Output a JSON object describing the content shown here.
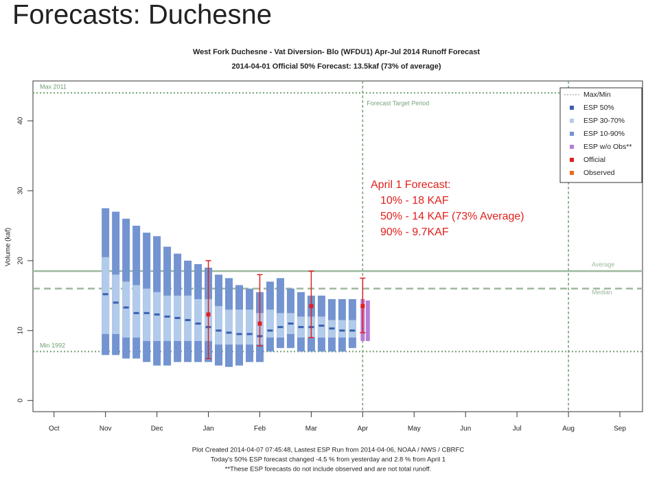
{
  "slide_title": "Forecasts: Duchesne",
  "chart_data": {
    "type": "range",
    "title": "West Fork Duchesne - Vat Diversion- Blo (WFDU1) Apr-Jul 2014 Runoff Forecast",
    "subtitle": "2014-04-01 Official 50% Forecast: 13.5kaf (73% of average)",
    "y_label": "Volume (kaf)",
    "xlim": [
      -0.41,
      11.44
    ],
    "xticks": [
      {
        "value": 0,
        "label": "Oct"
      },
      {
        "value": 1,
        "label": "Nov"
      },
      {
        "value": 2,
        "label": "Dec"
      },
      {
        "value": 3,
        "label": "Jan"
      },
      {
        "value": 4,
        "label": "Feb"
      },
      {
        "value": 5,
        "label": "Mar"
      },
      {
        "value": 6,
        "label": "Apr"
      },
      {
        "value": 7,
        "label": "May"
      },
      {
        "value": 8,
        "label": "Jun"
      },
      {
        "value": 9,
        "label": "Jul"
      },
      {
        "value": 10,
        "label": "Aug"
      },
      {
        "value": 11,
        "label": "Sep"
      }
    ],
    "ylim": [
      -1.6,
      45.7
    ],
    "yticks": [
      0,
      10,
      20,
      30,
      40
    ],
    "series": [
      {
        "name": "Max/Min",
        "color": "#6f9e6f",
        "values": [
          44,
          7
        ],
        "labels": [
          "Max 2011",
          "Min 1992"
        ]
      },
      {
        "name": "ESP 50%",
        "color": "#3a5fb0",
        "x": [
          1,
          1.2,
          1.4,
          1.6,
          1.8,
          2,
          2.2,
          2.4,
          2.6,
          2.8,
          3,
          3.2,
          3.4,
          3.6,
          3.8,
          4,
          4.2,
          4.4,
          4.6,
          4.8,
          5,
          5.2,
          5.4,
          5.6,
          5.8
        ],
        "values": [
          15.2,
          14,
          13.3,
          12.5,
          12.5,
          12.3,
          12,
          11.8,
          11.5,
          11,
          10.5,
          10,
          9.7,
          9.5,
          9.5,
          9.2,
          10,
          10.5,
          11,
          10.5,
          10.5,
          10.7,
          10.3,
          10,
          10
        ]
      },
      {
        "name": "ESP 30-70%",
        "color": "#b3cbea",
        "x": [
          1,
          1.2,
          1.4,
          1.6,
          1.8,
          2,
          2.2,
          2.4,
          2.6,
          2.8,
          3,
          3.2,
          3.4,
          3.6,
          3.8,
          4,
          4.2,
          4.4,
          4.6,
          4.8,
          5,
          5.2,
          5.4,
          5.6,
          5.8
        ],
        "low": [
          9.5,
          9.5,
          9,
          9,
          8.5,
          8.5,
          8.5,
          8.5,
          8.5,
          8.5,
          8.5,
          8,
          8,
          8,
          8,
          8,
          9,
          9,
          9.5,
          9,
          9,
          9,
          9,
          9,
          9
        ],
        "high": [
          20.5,
          18,
          17,
          16.5,
          16,
          15.5,
          15,
          15,
          15,
          14.5,
          14.5,
          13.5,
          13,
          13,
          13,
          12.5,
          13,
          12.5,
          12.5,
          12,
          12,
          12,
          11.5,
          11.5,
          11.5
        ]
      },
      {
        "name": "ESP 10-90%",
        "color": "#7394d0",
        "x": [
          1,
          1.2,
          1.4,
          1.6,
          1.8,
          2,
          2.2,
          2.4,
          2.6,
          2.8,
          3,
          3.2,
          3.4,
          3.6,
          3.8,
          4,
          4.2,
          4.4,
          4.6,
          4.8,
          5,
          5.2,
          5.4,
          5.6,
          5.8
        ],
        "low": [
          6.5,
          6.5,
          6,
          6,
          5.5,
          5,
          5,
          5.5,
          5.5,
          5.5,
          5.5,
          5,
          4.8,
          5,
          5.5,
          5.5,
          7,
          7.5,
          7.5,
          7,
          7,
          7,
          7,
          7,
          7.5
        ],
        "high": [
          27.5,
          27,
          26,
          25,
          24,
          23.5,
          22,
          21,
          20,
          19.5,
          19,
          18,
          17.5,
          16.5,
          16,
          15.5,
          17,
          17.5,
          16,
          15.5,
          15,
          15,
          14.5,
          14.5,
          14.5
        ]
      },
      {
        "name": "ESP w/o Obs**",
        "color": "#b57ed6",
        "x": [
          6,
          6.1
        ],
        "low": [
          8.5,
          8.5
        ],
        "high": [
          14.5,
          14.3
        ]
      },
      {
        "name": "Official",
        "color": "#e02020",
        "x": [
          3,
          4,
          5,
          6
        ],
        "values": [
          12.3,
          11,
          13.5,
          13.5
        ],
        "low": [
          6,
          7.8,
          9,
          9.7
        ],
        "high": [
          20,
          18,
          18.5,
          17.5
        ]
      },
      {
        "name": "Observed",
        "color": "#ee6a1a"
      }
    ],
    "reference_lines": [
      {
        "label": "Average",
        "value": 18.5,
        "color": "#9cb89c",
        "style": "solid"
      },
      {
        "label": "Median",
        "value": 16,
        "color": "#9cb89c",
        "style": "dashed"
      }
    ],
    "target_period": {
      "label": "Forecast Target Period",
      "x": [
        6,
        10
      ],
      "color": "#7a9e7a"
    },
    "annotation": [
      "April 1 Forecast:",
      "10% - 18 KAF",
      "50% - 14 KAF (73% Average)",
      "90% - 9.7KAF"
    ],
    "footer": [
      "Plot Created 2014-04-07 07:45:48, Lastest ESP Run from 2014-04-06, NOAA / NWS / CBRFC",
      "Today's 50% ESP forecast changed  -4.5 % from yesterday and  2.8 % from  April 1",
      "**These ESP forecasts do not include observed and are not total runoff."
    ]
  }
}
